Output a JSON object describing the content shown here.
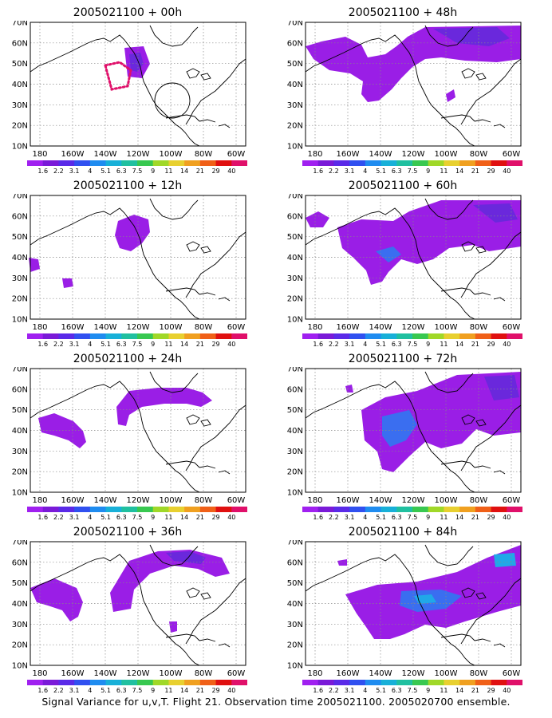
{
  "caption": "Signal Variance for u,v,T. Flight 21. Observation time 2005021100. 2005020700 ensemble.",
  "y_ticks": [
    "70N",
    "60N",
    "50N",
    "40N",
    "30N",
    "20N",
    "10N"
  ],
  "x_ticks": [
    "180",
    "160W",
    "140W",
    "120W",
    "100W",
    "80W",
    "60W"
  ],
  "colorbar": {
    "labels": [
      "1.6",
      "2.2",
      "3.1",
      "4",
      "5.1",
      "6.3",
      "7.5",
      "9",
      "11",
      "14",
      "21",
      "29",
      "40"
    ],
    "colors": [
      "#a020f0",
      "#7a1ad8",
      "#5a2ae8",
      "#3050f0",
      "#1f8cf0",
      "#18b0d8",
      "#20c0a0",
      "#38c850",
      "#a0d828",
      "#e8d030",
      "#f0a020",
      "#f06018",
      "#e01010",
      "#e0106a"
    ]
  },
  "colors": {
    "shade_purple": "#9a1ee6",
    "shade_dark": "#6a28dc",
    "shade_blue": "#3a6ef0",
    "shade_cyan": "#20a8e8",
    "obs_marker": "#e0106a"
  },
  "panels": [
    {
      "title": "2005021100 + 00h"
    },
    {
      "title": "2005021100 + 48h"
    },
    {
      "title": "2005021100 + 12h"
    },
    {
      "title": "2005021100 + 60h"
    },
    {
      "title": "2005021100 + 24h"
    },
    {
      "title": "2005021100 + 72h"
    },
    {
      "title": "2005021100 + 36h"
    },
    {
      "title": "2005021100 + 84h"
    }
  ]
}
